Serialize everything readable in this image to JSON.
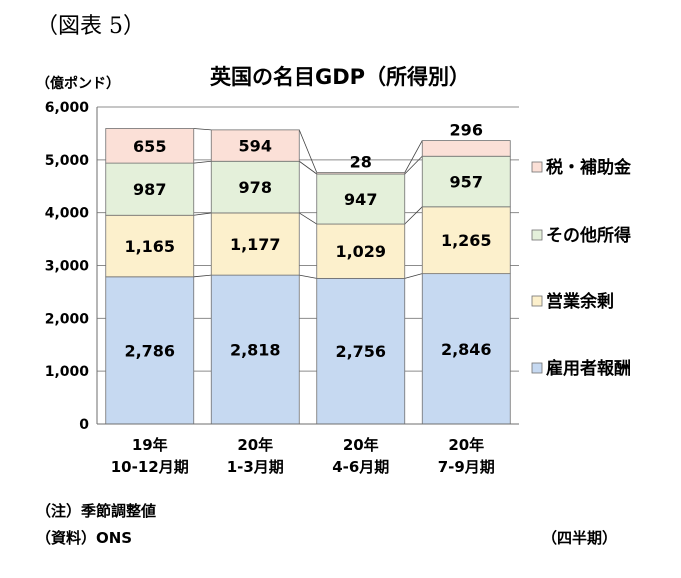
{
  "figure_label": "（図表 5）",
  "notes": {
    "note": "（注）季節調整値",
    "source": "（資料）ONS",
    "x_unit": "（四半期）"
  },
  "chart_data": {
    "type": "bar",
    "stacked": true,
    "title": "英国の名目GDP（所得別）",
    "ylabel": "（億ポンド）",
    "xlabel": "",
    "ylim": [
      0,
      6000
    ],
    "yticks": [
      0,
      1000,
      2000,
      3000,
      4000,
      5000,
      6000
    ],
    "ytick_labels": [
      "0",
      "1,000",
      "2,000",
      "3,000",
      "4,000",
      "5,000",
      "6,000"
    ],
    "categories": [
      [
        "19年",
        "10-12月期"
      ],
      [
        "20年",
        "1-3月期"
      ],
      [
        "20年",
        "4-6月期"
      ],
      [
        "20年",
        "7-9月期"
      ]
    ],
    "grid": true,
    "legend_position": "right",
    "series": [
      {
        "name": "雇用者報酬",
        "values": [
          2786,
          2818,
          2756,
          2846
        ],
        "labels": [
          "2,786",
          "2,818",
          "2,756",
          "2,846"
        ],
        "color": "#c6d9f1"
      },
      {
        "name": "営業余剰",
        "values": [
          1165,
          1177,
          1029,
          1265
        ],
        "labels": [
          "1,165",
          "1,177",
          "1,029",
          "1,265"
        ],
        "color": "#fcf0cc"
      },
      {
        "name": "その他所得",
        "values": [
          987,
          978,
          947,
          957
        ],
        "labels": [
          "987",
          "978",
          "947",
          "957"
        ],
        "color": "#e4f0da"
      },
      {
        "name": "税・補助金",
        "values": [
          655,
          594,
          28,
          296
        ],
        "labels": [
          "655",
          "594",
          "28",
          "296"
        ],
        "color": "#fbe0d7"
      }
    ],
    "legend_order": [
      "税・補助金",
      "その他所得",
      "営業余剰",
      "雇用者報酬"
    ]
  }
}
